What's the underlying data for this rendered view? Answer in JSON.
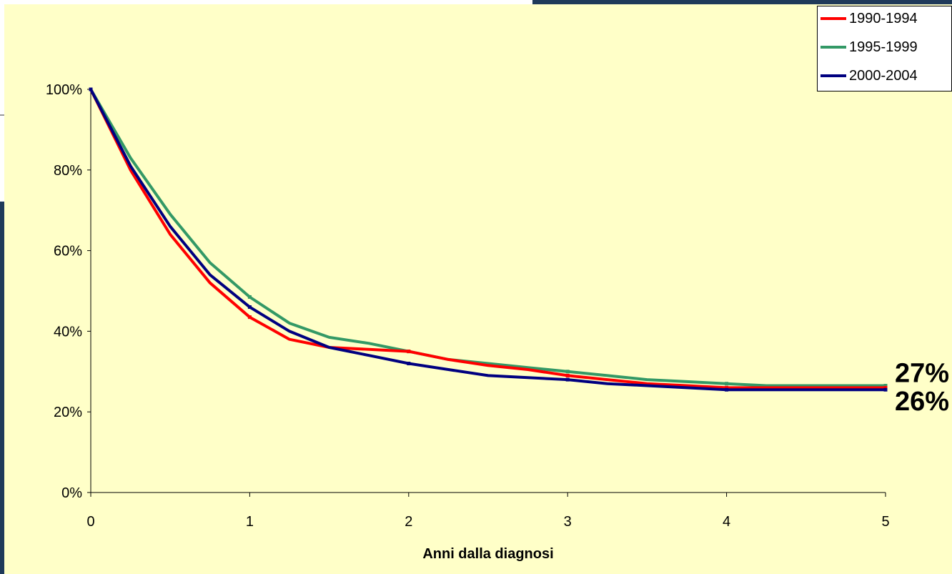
{
  "colors": {
    "background_chart": "#ffffc8",
    "frame": "#1f3a5a"
  },
  "chart_data": {
    "type": "line",
    "xlabel": "Anni dalla diagnosi",
    "ylabel": "",
    "xlim": [
      0,
      5
    ],
    "ylim": [
      0,
      100
    ],
    "x_ticks": [
      "0",
      "1",
      "2",
      "3",
      "4",
      "5"
    ],
    "y_ticks": [
      "0%",
      "20%",
      "40%",
      "60%",
      "80%",
      "100%"
    ],
    "grid": false,
    "legend_position": "top-right",
    "x": [
      0,
      0.25,
      0.5,
      0.75,
      1,
      1.25,
      1.5,
      1.75,
      2,
      2.25,
      2.5,
      2.75,
      3,
      3.25,
      3.5,
      3.75,
      4,
      4.25,
      4.5,
      4.75,
      5
    ],
    "series": [
      {
        "name": "1990-1994",
        "color": "#ff0000",
        "values": [
          100,
          80,
          64,
          52,
          43.5,
          38,
          36,
          35.5,
          35,
          33,
          31.5,
          30.5,
          29,
          28,
          27,
          26.5,
          26,
          26,
          26,
          26,
          26
        ]
      },
      {
        "name": "1995-1999",
        "color": "#339966",
        "values": [
          100,
          83,
          69,
          57,
          48.5,
          42,
          38.5,
          37,
          35,
          33,
          32,
          31,
          30,
          29,
          28,
          27.5,
          27,
          26.5,
          26.5,
          26.5,
          26.5
        ]
      },
      {
        "name": "2000-2004",
        "color": "#000080",
        "values": [
          100,
          81,
          66,
          54,
          46,
          40,
          36,
          34,
          32,
          30.5,
          29,
          28.5,
          28,
          27,
          26.5,
          26,
          25.5,
          25.5,
          25.5,
          25.5,
          25.5
        ]
      }
    ],
    "annotations": [
      "27%",
      "26%"
    ]
  }
}
